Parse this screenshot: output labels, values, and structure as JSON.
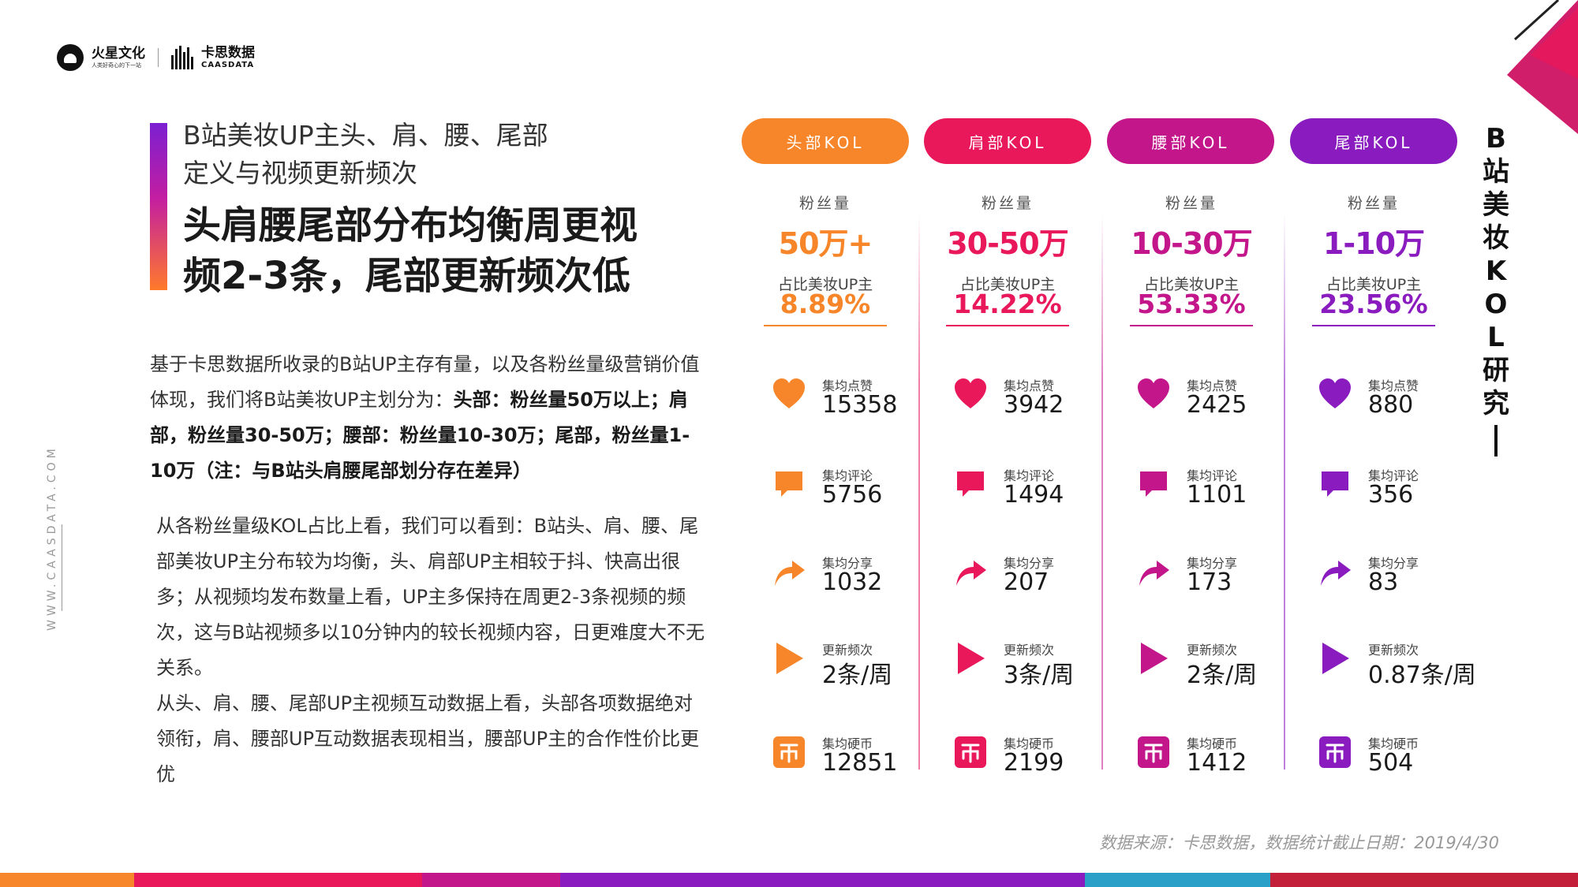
{
  "logo": {
    "brand": "火星文化",
    "slogan": "人类好奇心的下一站",
    "partner": "卡思数据",
    "partner_en": "CAASDATA"
  },
  "header": {
    "subtitle_line1": "B站美妆UP主头、肩、腰、尾部",
    "subtitle_line2": "定义与视频更新频次",
    "title_line1": "头肩腰尾部分布均衡周更视",
    "title_line2": "频2-3条，尾部更新频次低"
  },
  "body": {
    "p1_a": "基于卡思数据所收录的B站UP主存有量，以及各粉丝量级营销价值体现，我们将B站美妆UP主划分为：",
    "p1_b": "头部：粉丝量50万以上；肩部，粉丝量30-50万；腰部：粉丝量10-30万；尾部，粉丝量1-10万（注：与B站头肩腰尾部划分存在差异）",
    "p2_line1": "从各粉丝量级KOL占比上看，我们可以看到：B站头、肩、腰、尾部美妆UP主分布较为均衡，头、肩部UP主相较于抖、快高出很多；从视频均发布数量上看，UP主多保持在周更2-3条视频的频次，这与B站视频多以10分钟内的较长视频内容，日更难度大不无关系。",
    "p2_line2": "从头、肩、腰、尾部UP主视频互动数据上看，头部各项数据绝对领衔，肩、腰部UP互动数据表现相当，腰部UP主的合作性价比更优"
  },
  "website": "WWW.CAASDATA.COM",
  "side_title": "B站美妆KOL研究",
  "source": "数据来源：卡思数据，数据统计截止日期：2019/4/30",
  "labels": {
    "fans": "粉丝量",
    "share_of": "占比美妆UP主",
    "likes": "集均点赞",
    "comments": "集均评论",
    "shares": "集均分享",
    "frequency": "更新频次",
    "coins": "集均硬币"
  },
  "columns": [
    {
      "tier": "头部KOL",
      "color": "#f7862a",
      "fans": "50万+",
      "share": "8.89%",
      "likes": "15358",
      "comments": "5756",
      "shares": "1032",
      "frequency": "2条/周",
      "coins": "12851"
    },
    {
      "tier": "肩部KOL",
      "color": "#e8185b",
      "fans": "30-50万",
      "share": "14.22%",
      "likes": "3942",
      "comments": "1494",
      "shares": "207",
      "frequency": "3条/周",
      "coins": "2199"
    },
    {
      "tier": "腰部KOL",
      "color": "#c4168b",
      "fans": "10-30万",
      "share": "53.33%",
      "likes": "2425",
      "comments": "1101",
      "shares": "173",
      "frequency": "2条/周",
      "coins": "1412"
    },
    {
      "tier": "尾部KOL",
      "color": "#8a1cbf",
      "fans": "1-10万",
      "share": "23.56%",
      "likes": "880",
      "comments": "356",
      "shares": "83",
      "frequency": "0.87条/周",
      "coins": "504"
    }
  ]
}
